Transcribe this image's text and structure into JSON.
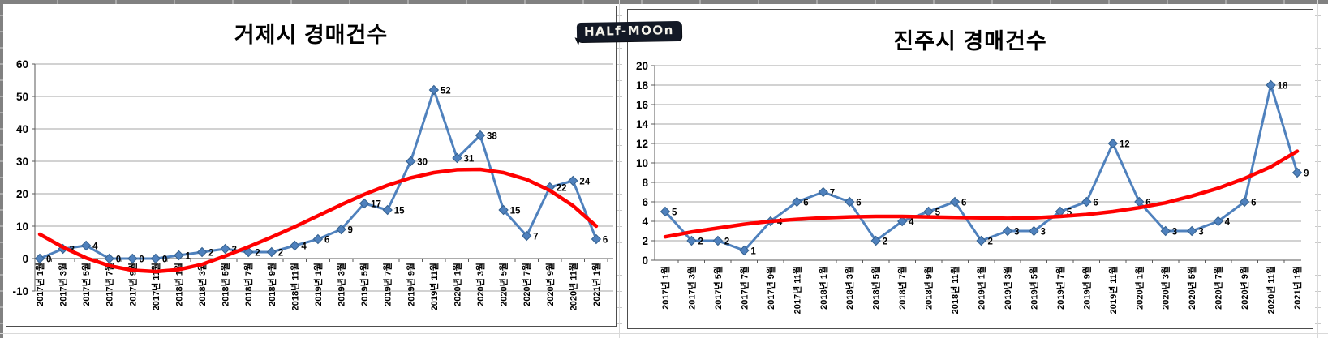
{
  "logo": {
    "text": "HALf-MOOn"
  },
  "chart_data": [
    {
      "type": "line",
      "title": "거제시 경매건수",
      "legend": "none",
      "grid": true,
      "categories": [
        "2017년 1월",
        "2017년 3월",
        "2017년 5월",
        "2017년 7월",
        "2017년 9월",
        "2017년 11월",
        "2018년 1월",
        "2018년 3월",
        "2018년 5월",
        "2018년 7월",
        "2018년 9월",
        "2018년 11월",
        "2019년 1월",
        "2019년 3월",
        "2019년 5월",
        "2019년 7월",
        "2019년 9월",
        "2019년 11월",
        "2020년 1월",
        "2020년 3월",
        "2020년 5월",
        "2020년 7월",
        "2020년 9월",
        "2020년 11월",
        "2021년 1월"
      ],
      "series": [
        {
          "role": "auction-count",
          "marker": "diamond",
          "color": "#4F81BD",
          "values": [
            0,
            3,
            4,
            0,
            0,
            0,
            1,
            2,
            3,
            2,
            2,
            4,
            6,
            9,
            17,
            15,
            30,
            52,
            31,
            38,
            15,
            7,
            22,
            24,
            6
          ],
          "data_labels": true
        },
        {
          "role": "polynomial-trend",
          "marker": "none",
          "color": "#FF0000",
          "values": [
            7.5,
            3.5,
            0.2,
            -2.2,
            -3.6,
            -4.0,
            -3.4,
            -1.8,
            0.8,
            3.6,
            6.6,
            9.8,
            13.2,
            16.6,
            19.8,
            22.6,
            24.9,
            26.5,
            27.4,
            27.5,
            26.5,
            24.4,
            21.0,
            16.3,
            10.0
          ],
          "data_labels": false
        }
      ],
      "y_axis": {
        "min": -10,
        "max": 60,
        "step": 10,
        "tick_labels": [
          "-10",
          "0",
          "10",
          "20",
          "30",
          "40",
          "50",
          "60"
        ]
      },
      "x_axis": {
        "label_rotation_deg": -90
      }
    },
    {
      "type": "line",
      "title": "진주시 경매건수",
      "legend": "none",
      "grid": true,
      "categories": [
        "2017년 1월",
        "2017년 3월",
        "2017년 5월",
        "2017년 7월",
        "2017년 9월",
        "2017년 11월",
        "2018년 1월",
        "2018년 3월",
        "2018년 5월",
        "2018년 7월",
        "2018년 9월",
        "2018년 11월",
        "2019년 1월",
        "2019년 3월",
        "2019년 5월",
        "2019년 7월",
        "2019년 9월",
        "2019년 11월",
        "2020년 1월",
        "2020년 3월",
        "2020년 5월",
        "2020년 7월",
        "2020년 9월",
        "2020년 11월",
        "2021년 1월"
      ],
      "series": [
        {
          "role": "auction-count",
          "marker": "diamond",
          "color": "#4F81BD",
          "values": [
            5,
            2,
            2,
            1,
            4,
            6,
            7,
            6,
            2,
            4,
            5,
            6,
            2,
            3,
            3,
            5,
            6,
            12,
            6,
            3,
            3,
            4,
            6,
            18,
            9
          ],
          "data_labels": true
        },
        {
          "role": "polynomial-trend",
          "marker": "none",
          "color": "#FF0000",
          "values": [
            2.4,
            2.9,
            3.3,
            3.7,
            4.0,
            4.2,
            4.35,
            4.45,
            4.5,
            4.5,
            4.45,
            4.4,
            4.35,
            4.3,
            4.35,
            4.5,
            4.7,
            5.0,
            5.4,
            5.9,
            6.6,
            7.4,
            8.4,
            9.6,
            11.2
          ],
          "data_labels": false
        }
      ],
      "y_axis": {
        "min": 0,
        "max": 20,
        "step": 2,
        "tick_labels": [
          "0",
          "2",
          "4",
          "6",
          "8",
          "10",
          "12",
          "14",
          "16",
          "18",
          "20"
        ]
      },
      "x_axis": {
        "label_rotation_deg": -90
      }
    }
  ]
}
